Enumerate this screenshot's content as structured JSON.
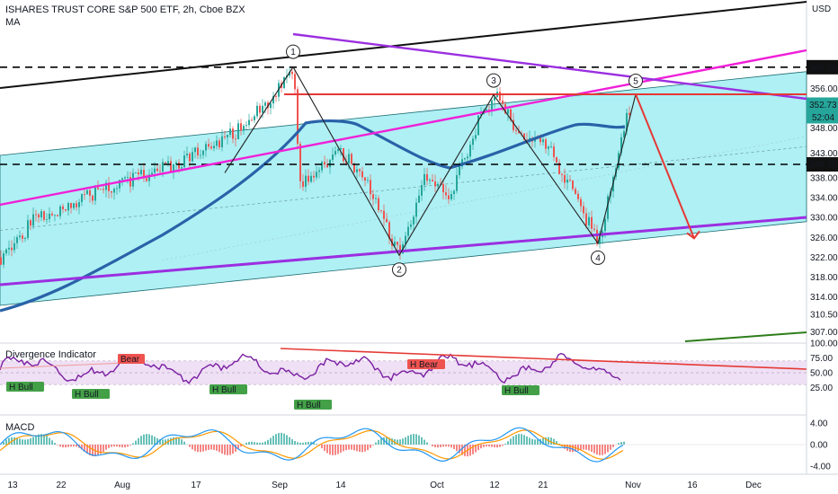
{
  "header": {
    "title": "ISHARES TRUST CORE S&P 500 ETF, 2h, Cboe BZX",
    "indicator": "MA",
    "currency": "USD",
    "divergence_label": "Divergence Indicator",
    "macd_label": "MACD"
  },
  "colors": {
    "channel_fill": "#aef0f4",
    "ma_line": "#2962a8",
    "red": "#e53935",
    "purple": "#9b2fe0",
    "magenta": "#f020d8",
    "black": "#111111",
    "green_line": "#2e7d1a",
    "candle_up": "#26a69a",
    "candle_down": "#ef5350",
    "osc_line": "#7b1fa2",
    "osc_band": "#efe0f5",
    "macd_line": "#2196f3",
    "signal_line": "#ff9800",
    "price_tag": "#26a69a"
  },
  "chart_data": [
    {
      "type": "candlestick",
      "title": "ISHARES TRUST CORE S&P 500 ETF, 2h, Cboe BZX",
      "y_axis_ticks": [
        360.26,
        356.0,
        352.73,
        348.0,
        343.0,
        340.7,
        338.0,
        334.0,
        330.0,
        326.0,
        322.0,
        318.0,
        314.0,
        310.5,
        307.0
      ],
      "x_axis_ticks": [
        "13",
        "22",
        "Aug",
        "17",
        "Sep",
        "14",
        "Oct",
        "12",
        "21",
        "Nov",
        "16",
        "Dec"
      ],
      "last_price": 352.73,
      "countdown": "52:04",
      "levels": [
        360.26,
        340.7
      ],
      "wave_labels": [
        "1",
        "2",
        "3",
        "4",
        "5"
      ],
      "wave_points": [
        {
          "label": "1",
          "date": "Sep 2",
          "price": 360.3
        },
        {
          "label": "2",
          "date": "Sep 24",
          "price": 322.4
        },
        {
          "label": "3",
          "date": "Oct 12",
          "price": 354.7
        },
        {
          "label": "4",
          "date": "Oct 30",
          "price": 324.8
        },
        {
          "label": "5",
          "date": "Nov 6",
          "price": 354.8
        }
      ],
      "projection": {
        "from": "Nov 6",
        "from_price": 354.8,
        "to": "Nov 16",
        "to_price": 325.8
      }
    },
    {
      "type": "line",
      "title": "Divergence Indicator",
      "y_axis_ticks": [
        "100.00",
        "75.00",
        "50.00",
        "25.00"
      ],
      "band": [
        30,
        70
      ],
      "signals": [
        {
          "label": "Bear",
          "kind": "bear"
        },
        {
          "label": "H Bear",
          "kind": "bear"
        },
        {
          "label": "H Bull",
          "kind": "bull"
        },
        {
          "label": "H Bull",
          "kind": "bull"
        },
        {
          "label": "H Bull",
          "kind": "bull"
        },
        {
          "label": "H Bull",
          "kind": "bull"
        },
        {
          "label": "H Bull",
          "kind": "bull"
        }
      ]
    },
    {
      "type": "bar",
      "title": "MACD",
      "y_axis_ticks": [
        "4.00",
        "0.00",
        "-4.00"
      ],
      "series": [
        {
          "name": "",
          "kind": "histogram"
        },
        {
          "name": "",
          "kind": "macd"
        },
        {
          "name": "",
          "kind": "signal"
        }
      ]
    }
  ]
}
